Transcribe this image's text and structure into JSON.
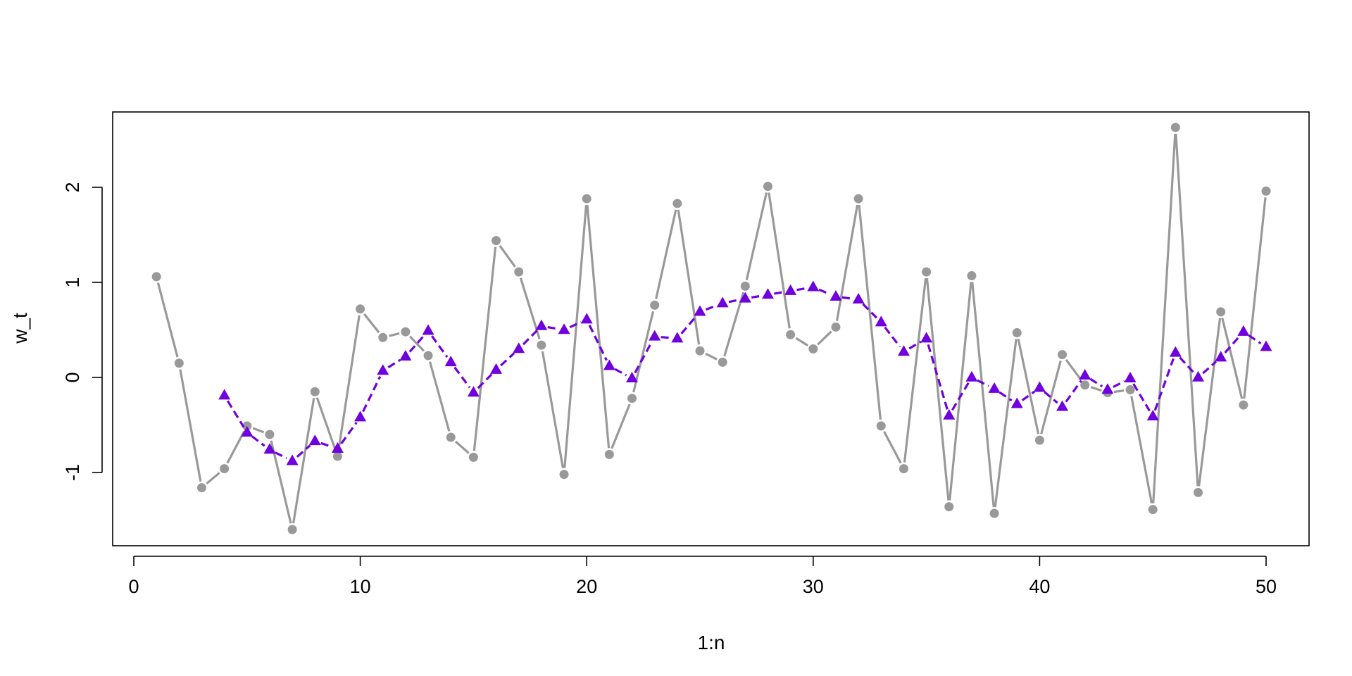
{
  "chart_data": {
    "type": "line",
    "xlabel": "1:n",
    "ylabel": "w_t",
    "xlim": [
      0,
      51
    ],
    "ylim": [
      -1.75,
      2.8
    ],
    "x_ticks": [
      0,
      10,
      20,
      30,
      40,
      50
    ],
    "x_tick_labels": [
      "0",
      "10",
      "20",
      "30",
      "40",
      "50"
    ],
    "y_ticks": [
      -1,
      0,
      1,
      2
    ],
    "y_tick_labels": [
      "-1",
      "0",
      "1",
      "2"
    ],
    "grid": false,
    "legend": "none",
    "series": [
      {
        "style": "solid line with filled circles",
        "color": "#999999",
        "x": [
          1,
          2,
          3,
          4,
          5,
          6,
          7,
          8,
          9,
          10,
          11,
          12,
          13,
          14,
          15,
          16,
          17,
          18,
          19,
          20,
          21,
          22,
          23,
          24,
          25,
          26,
          27,
          28,
          29,
          30,
          31,
          32,
          33,
          34,
          35,
          36,
          37,
          38,
          39,
          40,
          41,
          42,
          43,
          44,
          45,
          46,
          47,
          48,
          49,
          50
        ],
        "values": [
          1.06,
          0.15,
          -1.16,
          -0.96,
          -0.51,
          -0.6,
          -1.6,
          -0.15,
          -0.83,
          0.72,
          0.42,
          0.48,
          0.23,
          -0.63,
          -0.84,
          1.44,
          1.11,
          0.34,
          -1.02,
          1.88,
          -0.81,
          -0.22,
          0.76,
          1.83,
          0.28,
          0.16,
          0.96,
          2.01,
          0.45,
          0.3,
          0.53,
          1.88,
          -0.51,
          -0.96,
          1.11,
          -1.36,
          1.07,
          -1.43,
          0.47,
          -0.66,
          0.24,
          -0.08,
          -0.16,
          -0.13,
          -1.39,
          2.63,
          -1.21,
          0.69,
          -0.29,
          1.96
        ]
      },
      {
        "style": "dashed line with filled triangles",
        "color": "#7000DD",
        "x": [
          4,
          5,
          6,
          7,
          8,
          9,
          10,
          11,
          12,
          13,
          14,
          15,
          16,
          17,
          18,
          19,
          20,
          21,
          22,
          23,
          24,
          25,
          26,
          27,
          28,
          29,
          30,
          31,
          32,
          33,
          34,
          35,
          36,
          37,
          38,
          39,
          40,
          41,
          42,
          43,
          44,
          45,
          46,
          47,
          48,
          49,
          50
        ],
        "values": [
          -0.19,
          -0.58,
          -0.76,
          -0.88,
          -0.67,
          -0.75,
          -0.42,
          0.07,
          0.22,
          0.49,
          0.16,
          -0.16,
          0.08,
          0.3,
          0.54,
          0.5,
          0.61,
          0.12,
          -0.01,
          0.43,
          0.41,
          0.69,
          0.78,
          0.83,
          0.87,
          0.91,
          0.95,
          0.85,
          0.82,
          0.58,
          0.27,
          0.41,
          -0.4,
          0.0,
          -0.12,
          -0.28,
          -0.11,
          -0.31,
          0.02,
          -0.13,
          -0.01,
          -0.41,
          0.26,
          0.0,
          0.21,
          0.48,
          0.32
        ]
      }
    ]
  }
}
